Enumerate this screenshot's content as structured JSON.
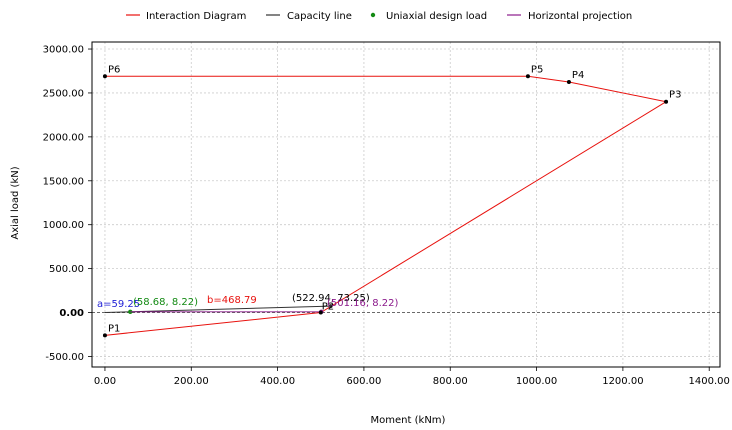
{
  "chart_data": {
    "type": "line",
    "xlabel": "Moment (kNm)",
    "ylabel": "Axial load (kN)",
    "xlim": [
      -30,
      1425
    ],
    "ylim": [
      -620,
      3080
    ],
    "x_ticks": [
      0,
      200,
      400,
      600,
      800,
      1000,
      1200,
      1400
    ],
    "x_tick_labels": [
      "0.00",
      "200.00",
      "400.00",
      "600.00",
      "800.00",
      "1000.00",
      "1200.00",
      "1400.00"
    ],
    "y_ticks": [
      -500,
      0,
      500,
      1000,
      1500,
      2000,
      2500,
      3000
    ],
    "y_tick_labels": [
      "-500.00",
      "0.00",
      "500.00",
      "1000.00",
      "1500.00",
      "2000.00",
      "2500.00",
      "3000.00"
    ],
    "grid": true,
    "legend_position": "top",
    "series": [
      {
        "name": "Interaction Diagram",
        "color": "#e8120e",
        "x": [
          0,
          500,
          1300,
          1075,
          980,
          0
        ],
        "y": [
          -260,
          0,
          2400,
          2625,
          2690,
          2690
        ]
      },
      {
        "name": "Capacity line",
        "color": "#333333",
        "x": [
          0,
          522.94
        ],
        "y": [
          0,
          73.25
        ]
      },
      {
        "name": "Uniaxial design load",
        "color": "#138a13",
        "x": [
          58.68
        ],
        "y": [
          8.22
        ]
      },
      {
        "name": "Horizontal projection",
        "color": "#8b1a8b",
        "x": [
          501.16
        ],
        "y": [
          8.22
        ]
      }
    ],
    "point_markers": [
      {
        "label": "P1",
        "x": 0,
        "y": -260
      },
      {
        "label": "P2",
        "x": 500,
        "y": 0
      },
      {
        "label": "P3",
        "x": 1300,
        "y": 2400
      },
      {
        "label": "P4",
        "x": 1075,
        "y": 2625
      },
      {
        "label": "P5",
        "x": 980,
        "y": 2690
      },
      {
        "label": "P6",
        "x": 0,
        "y": 2690
      }
    ],
    "annotations": [
      {
        "text": "a=59.25",
        "color": "#1f1fd6"
      },
      {
        "text": "(58.68, 8.22)",
        "color": "#138a13"
      },
      {
        "text": "b=468.79",
        "color": "#e8120e"
      },
      {
        "text": "(522.94, 73.25)",
        "color": "#000000"
      },
      {
        "text": "(501.16, 8.22)",
        "color": "#8b1a8b"
      }
    ],
    "zero_line": {
      "y": 0,
      "style": "dashed"
    }
  }
}
